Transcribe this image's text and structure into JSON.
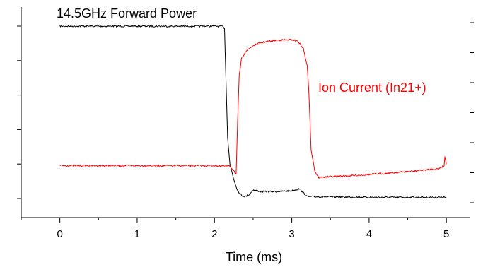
{
  "chart_data": {
    "type": "line",
    "title": "",
    "xlabel": "Time (ms)",
    "ylabel": "",
    "xlim": [
      -0.5,
      5.3
    ],
    "x_ticks": [
      0,
      1,
      2,
      3,
      4,
      5
    ],
    "x_tick_labels": [
      "0",
      "1",
      "2",
      "3",
      "4",
      "5"
    ],
    "left_axis_minor_ticks": 6,
    "right_axis_minor_ticks": 7,
    "grid": false,
    "legend": "none",
    "annotations": [
      {
        "text": "14.5GHz Forward Power",
        "color": "#000000"
      },
      {
        "text": "Ion Current (In21+)",
        "color": "#ff0000"
      }
    ],
    "series": [
      {
        "color": "#000000",
        "axis": "left",
        "ylim": [
          -0.5,
          5.0
        ],
        "points": [
          [
            0.0,
            4.5
          ],
          [
            0.5,
            4.5
          ],
          [
            1.0,
            4.5
          ],
          [
            1.5,
            4.5
          ],
          [
            2.0,
            4.5
          ],
          [
            2.1,
            4.5
          ],
          [
            2.13,
            4.45
          ],
          [
            2.15,
            3.0
          ],
          [
            2.17,
            1.6
          ],
          [
            2.2,
            0.9
          ],
          [
            2.25,
            0.5
          ],
          [
            2.3,
            0.2
          ],
          [
            2.35,
            0.08
          ],
          [
            2.4,
            0.05
          ],
          [
            2.45,
            0.1
          ],
          [
            2.5,
            0.22
          ],
          [
            2.6,
            0.18
          ],
          [
            2.8,
            0.18
          ],
          [
            3.0,
            0.2
          ],
          [
            3.1,
            0.25
          ],
          [
            3.2,
            0.05
          ],
          [
            3.5,
            0.04
          ],
          [
            4.0,
            0.03
          ],
          [
            4.5,
            0.03
          ],
          [
            5.0,
            0.03
          ]
        ]
      },
      {
        "color": "#ff0000",
        "axis": "right",
        "ylim": [
          -0.8,
          6.3
        ],
        "points": [
          [
            0.0,
            0.95
          ],
          [
            0.5,
            0.95
          ],
          [
            1.0,
            0.95
          ],
          [
            1.5,
            0.95
          ],
          [
            2.0,
            0.95
          ],
          [
            2.2,
            0.93
          ],
          [
            2.25,
            0.8
          ],
          [
            2.28,
            0.65
          ],
          [
            2.3,
            2.5
          ],
          [
            2.32,
            4.0
          ],
          [
            2.35,
            4.55
          ],
          [
            2.4,
            4.8
          ],
          [
            2.5,
            5.0
          ],
          [
            2.6,
            5.1
          ],
          [
            2.8,
            5.18
          ],
          [
            3.0,
            5.2
          ],
          [
            3.08,
            5.15
          ],
          [
            3.15,
            4.9
          ],
          [
            3.2,
            4.3
          ],
          [
            3.22,
            3.5
          ],
          [
            3.25,
            1.5
          ],
          [
            3.3,
            0.75
          ],
          [
            3.35,
            0.55
          ],
          [
            3.5,
            0.58
          ],
          [
            4.0,
            0.65
          ],
          [
            4.5,
            0.75
          ],
          [
            4.9,
            0.85
          ],
          [
            4.97,
            0.95
          ],
          [
            4.98,
            1.25
          ],
          [
            5.0,
            1.0
          ]
        ]
      }
    ]
  }
}
